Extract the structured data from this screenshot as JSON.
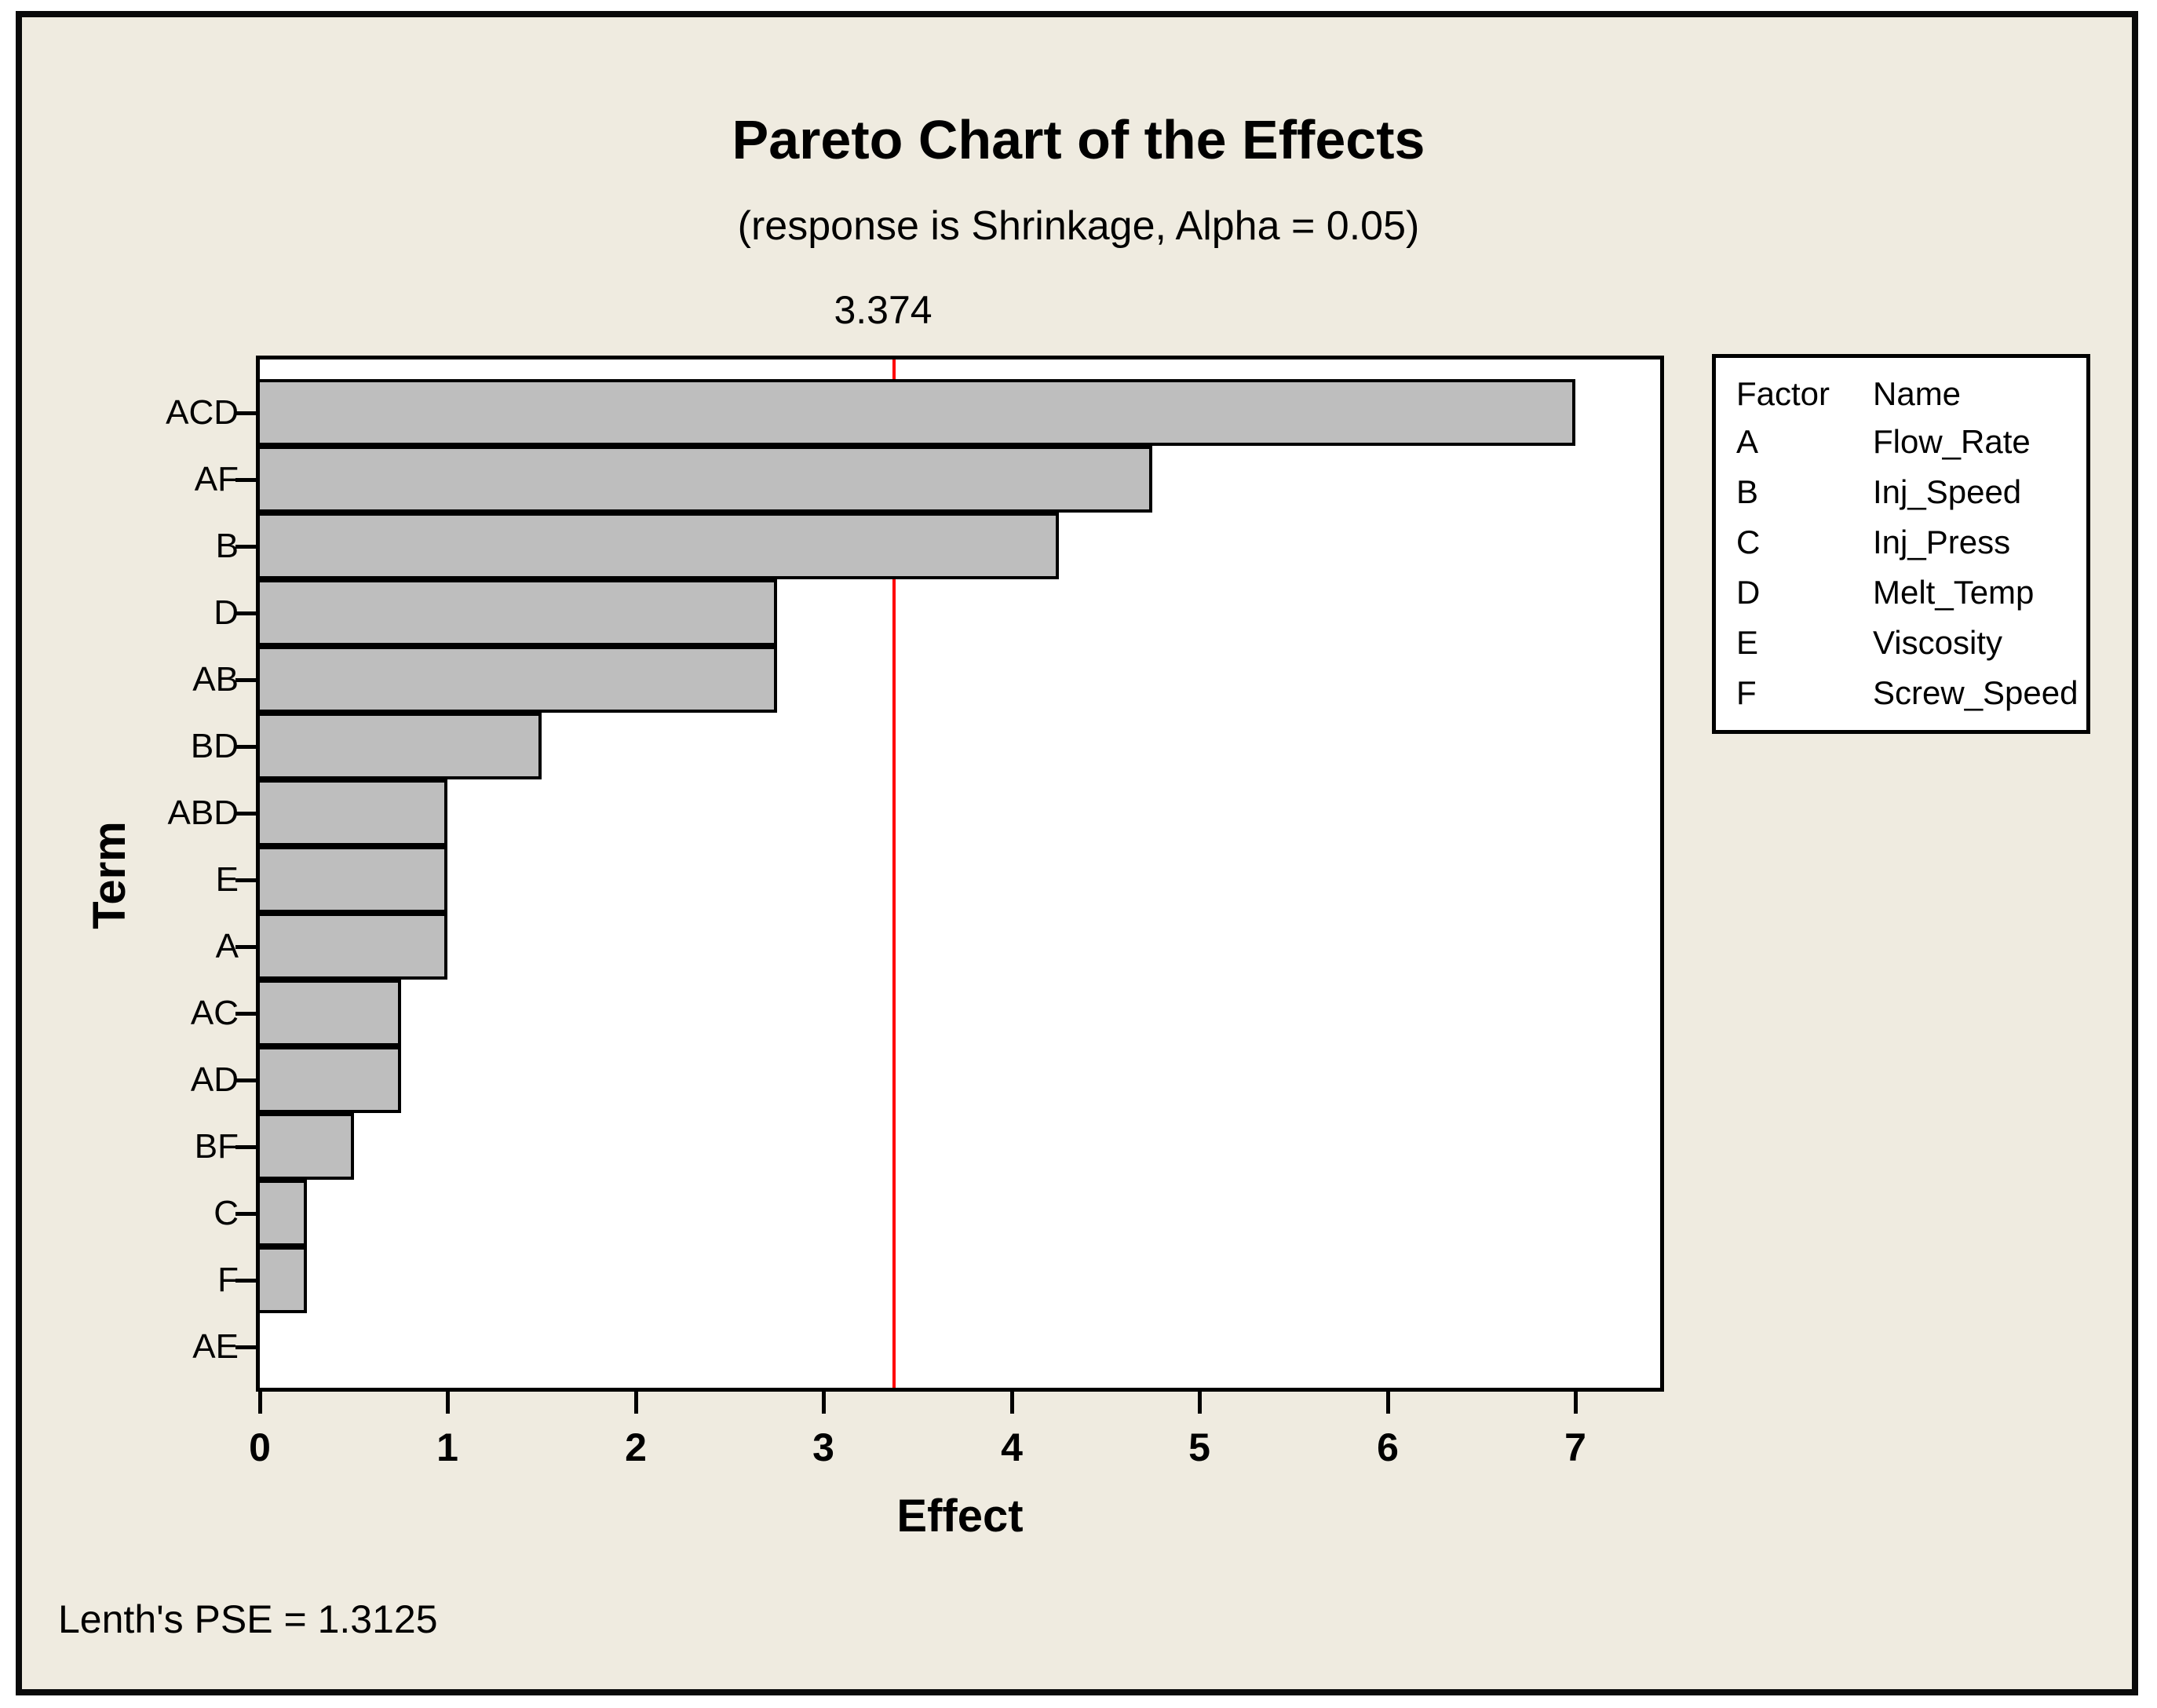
{
  "figure": {
    "footnote": "Lenth's PSE = 1.3125"
  },
  "chart_data": {
    "type": "bar",
    "orientation": "horizontal",
    "title": "Pareto Chart of the Effects",
    "subtitle": "(response is Shrinkage, Alpha = 0.05)",
    "xlabel": "Effect",
    "ylabel": "Term",
    "categories": [
      "ACD",
      "AF",
      "B",
      "D",
      "AB",
      "BD",
      "ABD",
      "E",
      "A",
      "AC",
      "AD",
      "BF",
      "C",
      "F",
      "AE"
    ],
    "values": [
      7.0,
      4.75,
      4.25,
      2.75,
      2.75,
      1.5,
      1.0,
      1.0,
      1.0,
      0.75,
      0.75,
      0.5,
      0.25,
      0.25,
      0
    ],
    "x_ticks": [
      0,
      1,
      2,
      3,
      4,
      5,
      6,
      7
    ],
    "xlim": [
      0,
      7.45
    ],
    "reference_line": {
      "value": 3.374,
      "label": "3.374",
      "color": "#ff0000"
    },
    "bar_color": "#bebebe",
    "bar_border_color": "#000000",
    "background_color": "#efebe0",
    "plot_background": "#ffffff",
    "grid": false,
    "legend_position": "right"
  },
  "legend": {
    "header": {
      "factor": "Factor",
      "name": "Name"
    },
    "factors": [
      {
        "factor": "A",
        "name": "Flow_Rate"
      },
      {
        "factor": "B",
        "name": "Inj_Speed"
      },
      {
        "factor": "C",
        "name": "Inj_Press"
      },
      {
        "factor": "D",
        "name": "Melt_Temp"
      },
      {
        "factor": "E",
        "name": "Viscosity"
      },
      {
        "factor": "F",
        "name": "Screw_Speed"
      }
    ]
  }
}
